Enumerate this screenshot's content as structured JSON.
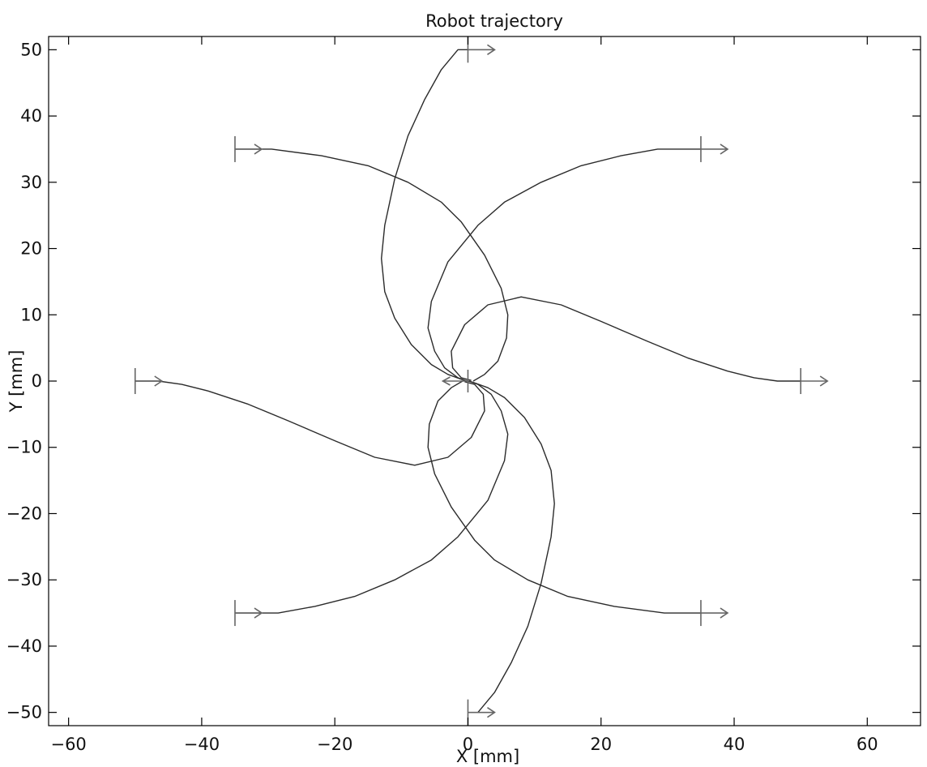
{
  "chart_data": {
    "type": "line",
    "title": "Robot trajectory",
    "xlabel": "X [mm]",
    "ylabel": "Y [mm]",
    "xlim": [
      -63,
      68
    ],
    "ylim": [
      -52,
      52
    ],
    "xticks": [
      -60,
      -40,
      -20,
      0,
      20,
      40,
      60
    ],
    "yticks": [
      -50,
      -40,
      -30,
      -20,
      -10,
      0,
      10,
      20,
      30,
      40,
      50
    ],
    "grid": false,
    "legend": "none",
    "line_color": "#2b2b2b",
    "marker_color": "#666666",
    "series": [
      {
        "x": [
          50,
          46.5,
          43,
          39,
          33,
          27,
          20,
          14,
          8,
          3,
          -0.5,
          -2.5,
          -2.3,
          -1,
          0.5
        ],
        "y": [
          0,
          0,
          0.5,
          1.5,
          3.5,
          6,
          9,
          11.5,
          12.7,
          11.5,
          8.5,
          4.5,
          2,
          0.5,
          0.1
        ],
        "start_heading": 0
      },
      {
        "x": [
          -50,
          -46.5,
          -43,
          -39,
          -33,
          -27,
          -20,
          -14,
          -8,
          -3,
          0.5,
          2.5,
          2.3,
          1,
          -0.5
        ],
        "y": [
          0,
          0,
          -0.5,
          -1.5,
          -3.5,
          -6,
          -9,
          -11.5,
          -12.7,
          -11.5,
          -8.5,
          -4.5,
          -2,
          -0.5,
          -0.1
        ],
        "start_heading": 0
      },
      {
        "x": [
          35,
          28.5,
          23,
          17,
          11,
          5.5,
          1.5,
          -3,
          -5.5,
          -6,
          -5,
          -3.5,
          -1.5,
          -0.2
        ],
        "y": [
          35,
          35,
          34,
          32.5,
          30,
          27,
          23.5,
          18,
          12,
          8,
          4.5,
          2,
          0.5,
          0
        ],
        "start_heading": 0
      },
      {
        "x": [
          -35,
          -28.5,
          -23,
          -17,
          -11,
          -5.5,
          -1.5,
          3,
          5.5,
          6,
          5,
          3.5,
          1.5,
          0.2
        ],
        "y": [
          -35,
          -35,
          -34,
          -32.5,
          -30,
          -27,
          -23.5,
          -18,
          -12,
          -8,
          -4.5,
          -2,
          -0.5,
          0
        ],
        "start_heading": 0
      },
      {
        "x": [
          -35,
          -29.5,
          -22,
          -15,
          -9,
          -4,
          -1,
          2.5,
          5,
          6,
          5.8,
          4.5,
          2.5,
          0.8
        ],
        "y": [
          35,
          35,
          34,
          32.5,
          30,
          27,
          24,
          19,
          14,
          10,
          6.5,
          3,
          1,
          0
        ],
        "start_heading": 0
      },
      {
        "x": [
          35,
          29.5,
          22,
          15,
          9,
          4,
          1,
          -2.5,
          -5,
          -6,
          -5.8,
          -4.5,
          -2.5,
          -0.8
        ],
        "y": [
          -35,
          -35,
          -34,
          -32.5,
          -30,
          -27,
          -24,
          -19,
          -14,
          -10,
          -6.5,
          -3,
          -1,
          0
        ],
        "start_heading": 0
      },
      {
        "x": [
          0,
          -1.5,
          -4,
          -6.5,
          -9,
          -11,
          -12.5,
          -13,
          -12.5,
          -11,
          -8.5,
          -5.5,
          -3,
          -0.8,
          0
        ],
        "y": [
          50,
          50,
          47,
          42.5,
          37,
          30.5,
          23.5,
          18.5,
          13.5,
          9.5,
          5.5,
          2.5,
          1,
          0.2,
          0
        ],
        "start_heading": 0
      },
      {
        "x": [
          0,
          1.5,
          4,
          6.5,
          9,
          11,
          12.5,
          13,
          12.5,
          11,
          8.5,
          5.5,
          3,
          0.8,
          0
        ],
        "y": [
          -50,
          -50,
          -47,
          -42.5,
          -37,
          -30.5,
          -23.5,
          -18.5,
          -13.5,
          -9.5,
          -5.5,
          -2.5,
          -1,
          -0.2,
          0
        ],
        "start_heading": 0
      }
    ],
    "start_markers": [
      {
        "x": 50,
        "y": 0
      },
      {
        "x": -50,
        "y": 0
      },
      {
        "x": 35,
        "y": 35
      },
      {
        "x": -35,
        "y": 35
      },
      {
        "x": 35,
        "y": -35
      },
      {
        "x": -35,
        "y": -35
      },
      {
        "x": 0,
        "y": 50
      },
      {
        "x": 0,
        "y": -50
      }
    ],
    "end_marker": {
      "x": 0,
      "y": 0
    }
  }
}
